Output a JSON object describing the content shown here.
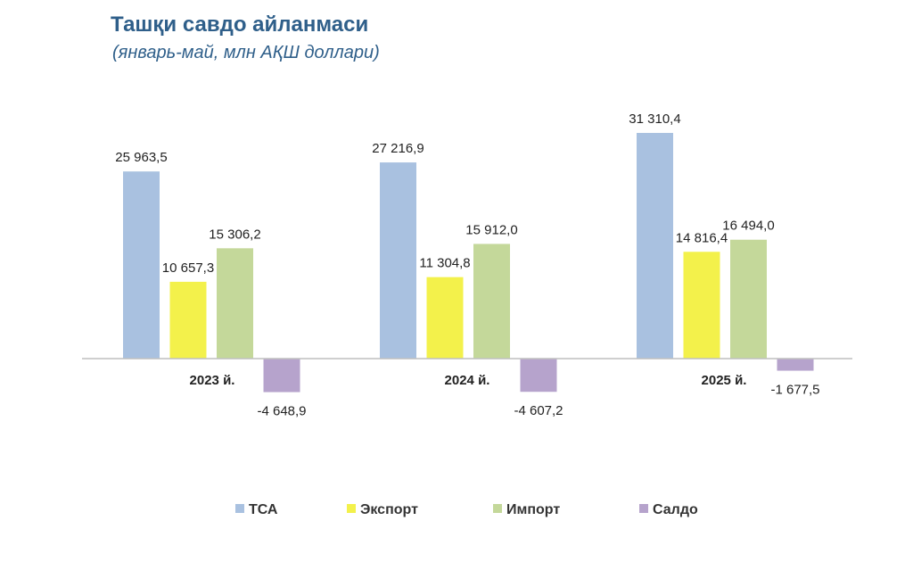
{
  "chart_data": {
    "type": "bar",
    "title": "Ташқи савдо айланмаси",
    "subtitle": "(январь-май, млн АҚШ доллари)",
    "categories": [
      "2023 й.",
      "2024 й.",
      "2025 й."
    ],
    "series": [
      {
        "name": "ТСА",
        "color": "#a9c1e0",
        "values": [
          25963.5,
          27216.9,
          31310.4
        ],
        "labels": [
          "25 963,5",
          "27 216,9",
          "31 310,4"
        ]
      },
      {
        "name": "Экспорт",
        "color": "#f3f14b",
        "values": [
          10657.3,
          11304.8,
          14816.4
        ],
        "labels": [
          "10 657,3",
          "11 304,8",
          "14 816,4"
        ]
      },
      {
        "name": "Импорт",
        "color": "#c4d89a",
        "values": [
          15306.2,
          15912.0,
          16494.0
        ],
        "labels": [
          "15 306,2",
          "15 912,0",
          "16 494,0"
        ]
      },
      {
        "name": "Салдо",
        "color": "#b6a3cc",
        "values": [
          -4648.9,
          -4607.2,
          -1677.5
        ],
        "labels": [
          "-4 648,9",
          "-4 607,2",
          "-1 677,5"
        ]
      }
    ],
    "xlabel": "",
    "ylabel": "",
    "ylim": [
      -5000,
      32000
    ],
    "grid": false,
    "legend": "bottom"
  }
}
